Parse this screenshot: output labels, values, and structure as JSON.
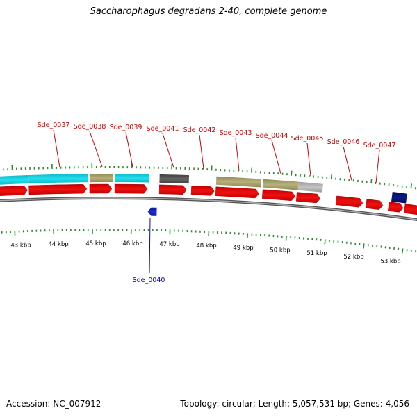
{
  "title": "Saccharophagus degradans 2-40, complete genome",
  "accession_text": "Accession: NC_007912",
  "summary_text": "Topology: circular; Length: 5,057,531 bp; Genes: 4,056",
  "colors": {
    "forward_cds": "#ee1111",
    "reverse_cds": "#1a2adb",
    "upper_label": "#cc0000",
    "lower_label": "#0000cc",
    "tick": "#2a8c2a",
    "backbone": "#888888",
    "feature_cyan": "#22e0ee",
    "feature_khaki": "#b8b07a",
    "feature_darkgray": "#666666",
    "feature_lightgray": "#c4c4c4",
    "feature_navy": "#0a1a8c"
  },
  "upper_gene_labels": [
    "Sde_0037",
    "Sde_0038",
    "Sde_0039",
    "Sde_0041",
    "Sde_0042",
    "Sde_0043",
    "Sde_0044",
    "Sde_0045",
    "Sde_0046",
    "Sde_0047"
  ],
  "lower_gene_labels": [
    "Sde_0040"
  ],
  "kbp_labels": [
    "43 kbp",
    "44 kbp",
    "45 kbp",
    "46 kbp",
    "47 kbp",
    "48 kbp",
    "49 kbp",
    "50 kbp",
    "51 kbp",
    "52 kbp",
    "53 kbp"
  ]
}
